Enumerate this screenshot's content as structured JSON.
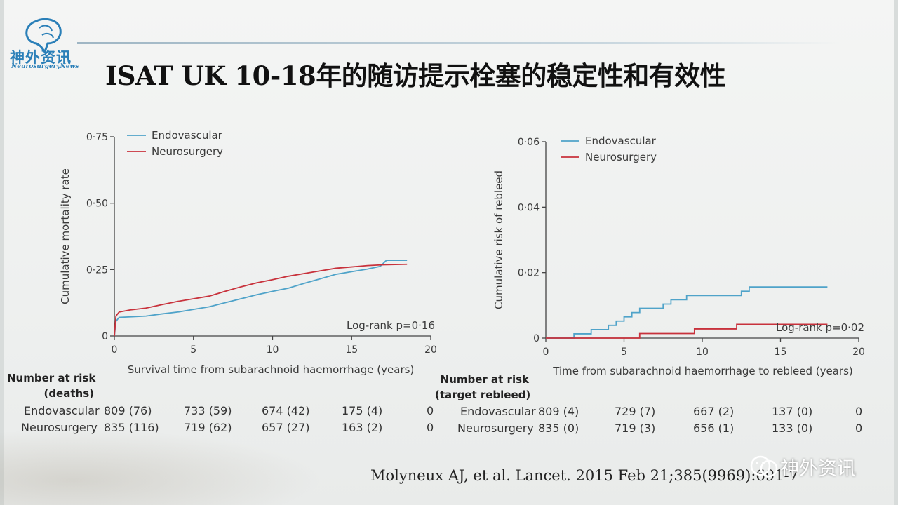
{
  "slide": {
    "title": "ISAT UK 10-18年的随访提示栓塞的稳定性和有效性",
    "logo_cn": "神外资讯",
    "logo_en": "NeurosurgeryNews",
    "citation": "Molyneux AJ, et al. Lancet. 2015 Feb 21;385(9969):691-7",
    "watermark": "神外资讯"
  },
  "colors": {
    "endovascular": "#4fa3c9",
    "neurosurgery": "#c8323c"
  },
  "chart_data": [
    {
      "type": "line",
      "ylabel": "Cumulative mortality rate",
      "xlabel": "Survival time from subarachnoid haemorrhage (years)",
      "xlim": [
        0,
        20
      ],
      "ylim": [
        0,
        0.75
      ],
      "xticks": [
        "0",
        "5",
        "10",
        "15",
        "20"
      ],
      "yticks": [
        "0",
        "0·25",
        "0·50",
        "0·75"
      ],
      "xtick_values": [
        0,
        5,
        10,
        15,
        20
      ],
      "ytick_values": [
        0,
        0.25,
        0.5,
        0.75
      ],
      "legend": "top-left",
      "annotation": "Log-rank p=0·16",
      "series": [
        {
          "name": "Endovascular",
          "x": [
            0,
            0.1,
            0.3,
            1,
            2,
            3,
            4,
            5,
            6,
            7,
            8,
            9,
            10,
            11,
            12,
            13,
            14,
            15,
            16,
            16.8,
            17.2,
            18.5
          ],
          "y": [
            0,
            0.055,
            0.07,
            0.072,
            0.075,
            0.083,
            0.09,
            0.1,
            0.11,
            0.125,
            0.14,
            0.155,
            0.168,
            0.18,
            0.198,
            0.215,
            0.232,
            0.242,
            0.252,
            0.262,
            0.285,
            0.285
          ]
        },
        {
          "name": "Neurosurgery",
          "x": [
            0,
            0.1,
            0.3,
            1,
            2,
            3,
            4,
            5,
            6,
            7,
            8,
            9,
            10,
            11,
            12,
            13,
            14,
            15,
            16,
            17,
            18.5
          ],
          "y": [
            0,
            0.075,
            0.09,
            0.098,
            0.105,
            0.118,
            0.13,
            0.14,
            0.15,
            0.168,
            0.185,
            0.2,
            0.212,
            0.225,
            0.235,
            0.245,
            0.255,
            0.26,
            0.265,
            0.268,
            0.27
          ]
        }
      ],
      "risk_table": {
        "header": [
          "Number at risk",
          "(deaths)"
        ],
        "rows": [
          {
            "label": "Endovascular",
            "values": [
              "809 (76)",
              "733 (59)",
              "674 (42)",
              "175 (4)",
              "0"
            ]
          },
          {
            "label": "Neurosurgery",
            "values": [
              "835 (116)",
              "719 (62)",
              "657 (27)",
              "163 (2)",
              "0"
            ]
          }
        ]
      }
    },
    {
      "type": "line",
      "ylabel": "Cumulative risk of rebleed",
      "xlabel": "Time from subarachnoid haemorrhage to rebleed (years)",
      "xlim": [
        0,
        20
      ],
      "ylim": [
        0,
        0.06
      ],
      "xticks": [
        "0",
        "5",
        "10",
        "15",
        "20"
      ],
      "yticks": [
        "0",
        "0·02",
        "0·04",
        "0·06"
      ],
      "xtick_values": [
        0,
        5,
        10,
        15,
        20
      ],
      "ytick_values": [
        0,
        0.02,
        0.04,
        0.06
      ],
      "legend": "top-left",
      "annotation": "Log-rank p=0·02",
      "series": [
        {
          "name": "Endovascular",
          "step": true,
          "x": [
            0,
            1.8,
            2.9,
            4.0,
            4.5,
            5.0,
            5.5,
            6.0,
            7.5,
            8.0,
            9.0,
            12.5,
            13.0,
            18.0
          ],
          "y": [
            0,
            0.0013,
            0.0026,
            0.0039,
            0.0052,
            0.0065,
            0.0078,
            0.0091,
            0.0104,
            0.0117,
            0.013,
            0.0143,
            0.0156,
            0.0156
          ]
        },
        {
          "name": "Neurosurgery",
          "step": true,
          "x": [
            0,
            6.0,
            9.5,
            12.2,
            18.0
          ],
          "y": [
            0,
            0.0014,
            0.0028,
            0.0042,
            0.0042
          ]
        }
      ],
      "risk_table": {
        "header": [
          "Number at risk",
          "(target rebleed)"
        ],
        "rows": [
          {
            "label": "Endovascular",
            "values": [
              "809 (4)",
              "729 (7)",
              "667 (2)",
              "137 (0)",
              "0"
            ]
          },
          {
            "label": "Neurosurgery",
            "values": [
              "835 (0)",
              "719 (3)",
              "656 (1)",
              "133 (0)",
              "0"
            ]
          }
        ]
      }
    }
  ]
}
